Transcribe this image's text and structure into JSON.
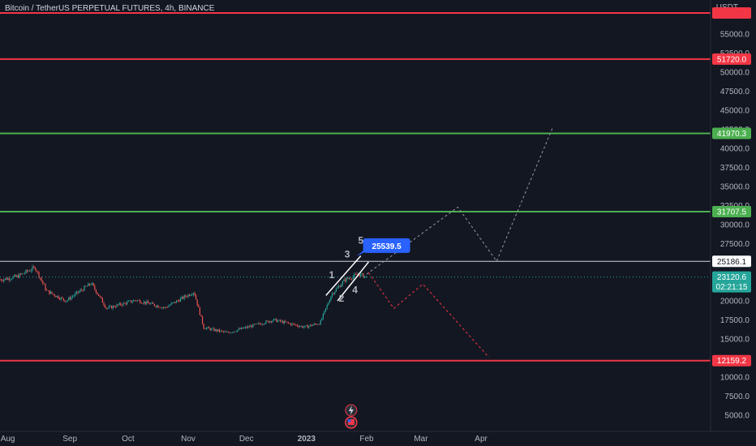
{
  "header": {
    "symbol_title": "Bitcoin / TetherUS PERPETUAL FUTURES, 4h, BINANCE",
    "currency": "USDT"
  },
  "colors": {
    "background": "#131722",
    "axis_text": "#b2b5be",
    "support_resistance_red": "#f23645",
    "support_resistance_green": "#4caf50",
    "white_level": "#d1d4dc",
    "bull_candle": "#26a69a",
    "bear_candle": "#ef5350",
    "target_label_blue": "#2962ff",
    "projection_white": "#9598a1",
    "projection_red": "#f23645"
  },
  "icons": [
    "lightning-icon",
    "flag-icon"
  ],
  "chart_data": {
    "type": "candlestick",
    "title": "Bitcoin / TetherUS PERPETUAL FUTURES, 4h, BINANCE",
    "x_ticks": [
      "Aug",
      "Sep",
      "Oct",
      "Nov",
      "Dec",
      "2023",
      "Feb",
      "Mar",
      "Apr"
    ],
    "y_ticks": [
      5000.0,
      7500.0,
      10000.0,
      12500.0,
      15000.0,
      17500.0,
      20000.0,
      22500.0,
      25000.0,
      27500.0,
      30000.0,
      32500.0,
      35000.0,
      37500.0,
      40000.0,
      42500.0,
      45000.0,
      47500.0,
      50000.0,
      52500.0,
      55000.0
    ],
    "ylim": [
      4000,
      57000
    ],
    "grid": false,
    "price_trend": [
      {
        "date": "2022-07-28",
        "price": 22800
      },
      {
        "date": "2022-08-05",
        "price": 23200
      },
      {
        "date": "2022-08-14",
        "price": 24400
      },
      {
        "date": "2022-08-20",
        "price": 21300
      },
      {
        "date": "2022-08-30",
        "price": 20000
      },
      {
        "date": "2022-09-12",
        "price": 22300
      },
      {
        "date": "2022-09-20",
        "price": 19000
      },
      {
        "date": "2022-10-05",
        "price": 20100
      },
      {
        "date": "2022-10-20",
        "price": 19100
      },
      {
        "date": "2022-11-04",
        "price": 21200
      },
      {
        "date": "2022-11-09",
        "price": 16500
      },
      {
        "date": "2022-11-21",
        "price": 15800
      },
      {
        "date": "2022-12-15",
        "price": 17500
      },
      {
        "date": "2022-12-31",
        "price": 16550
      },
      {
        "date": "2023-01-08",
        "price": 17100
      },
      {
        "date": "2023-01-14",
        "price": 20900
      },
      {
        "date": "2023-01-21",
        "price": 22800
      },
      {
        "date": "2023-01-28",
        "price": 23500
      },
      {
        "date": "2023-02-01",
        "price": 23120
      }
    ],
    "horizontal_levels": [
      {
        "price": 51720.0,
        "label": "51720.0",
        "color": "#f23645"
      },
      {
        "price": 41970.3,
        "label": "41970.3",
        "color": "#4caf50"
      },
      {
        "price": 31707.5,
        "label": "31707.5",
        "color": "#4caf50"
      },
      {
        "price": 25186.1,
        "label": "25186.1",
        "color": "#d1d4dc"
      },
      {
        "price": 12159.2,
        "label": "12159.2",
        "color": "#f23645"
      }
    ],
    "current_price": {
      "price": 23120.6,
      "label": "23120.6",
      "countdown": "02:21:15",
      "color": "#26a69a"
    },
    "target_label": {
      "price": 25539.5,
      "label": "25539.5"
    },
    "wave_labels": [
      {
        "label": "1",
        "date": "2023-01-14",
        "price": 23000
      },
      {
        "label": "2",
        "date": "2023-01-19",
        "price": 19900
      },
      {
        "label": "3",
        "date": "2023-01-22",
        "price": 25700
      },
      {
        "label": "4",
        "date": "2023-01-26",
        "price": 21000
      },
      {
        "label": "5",
        "date": "2023-01-29",
        "price": 27500
      }
    ],
    "projection_bullish": [
      {
        "date": "2023-02-01",
        "price": 23500
      },
      {
        "date": "2023-03-20",
        "price": 32300
      },
      {
        "date": "2023-04-09",
        "price": 25200
      },
      {
        "date": "2023-05-08",
        "price": 42800
      }
    ],
    "projection_bearish": [
      {
        "date": "2023-02-02",
        "price": 23700
      },
      {
        "date": "2023-02-15",
        "price": 19000
      },
      {
        "date": "2023-03-02",
        "price": 22200
      },
      {
        "date": "2023-04-05",
        "price": 12600
      }
    ]
  }
}
